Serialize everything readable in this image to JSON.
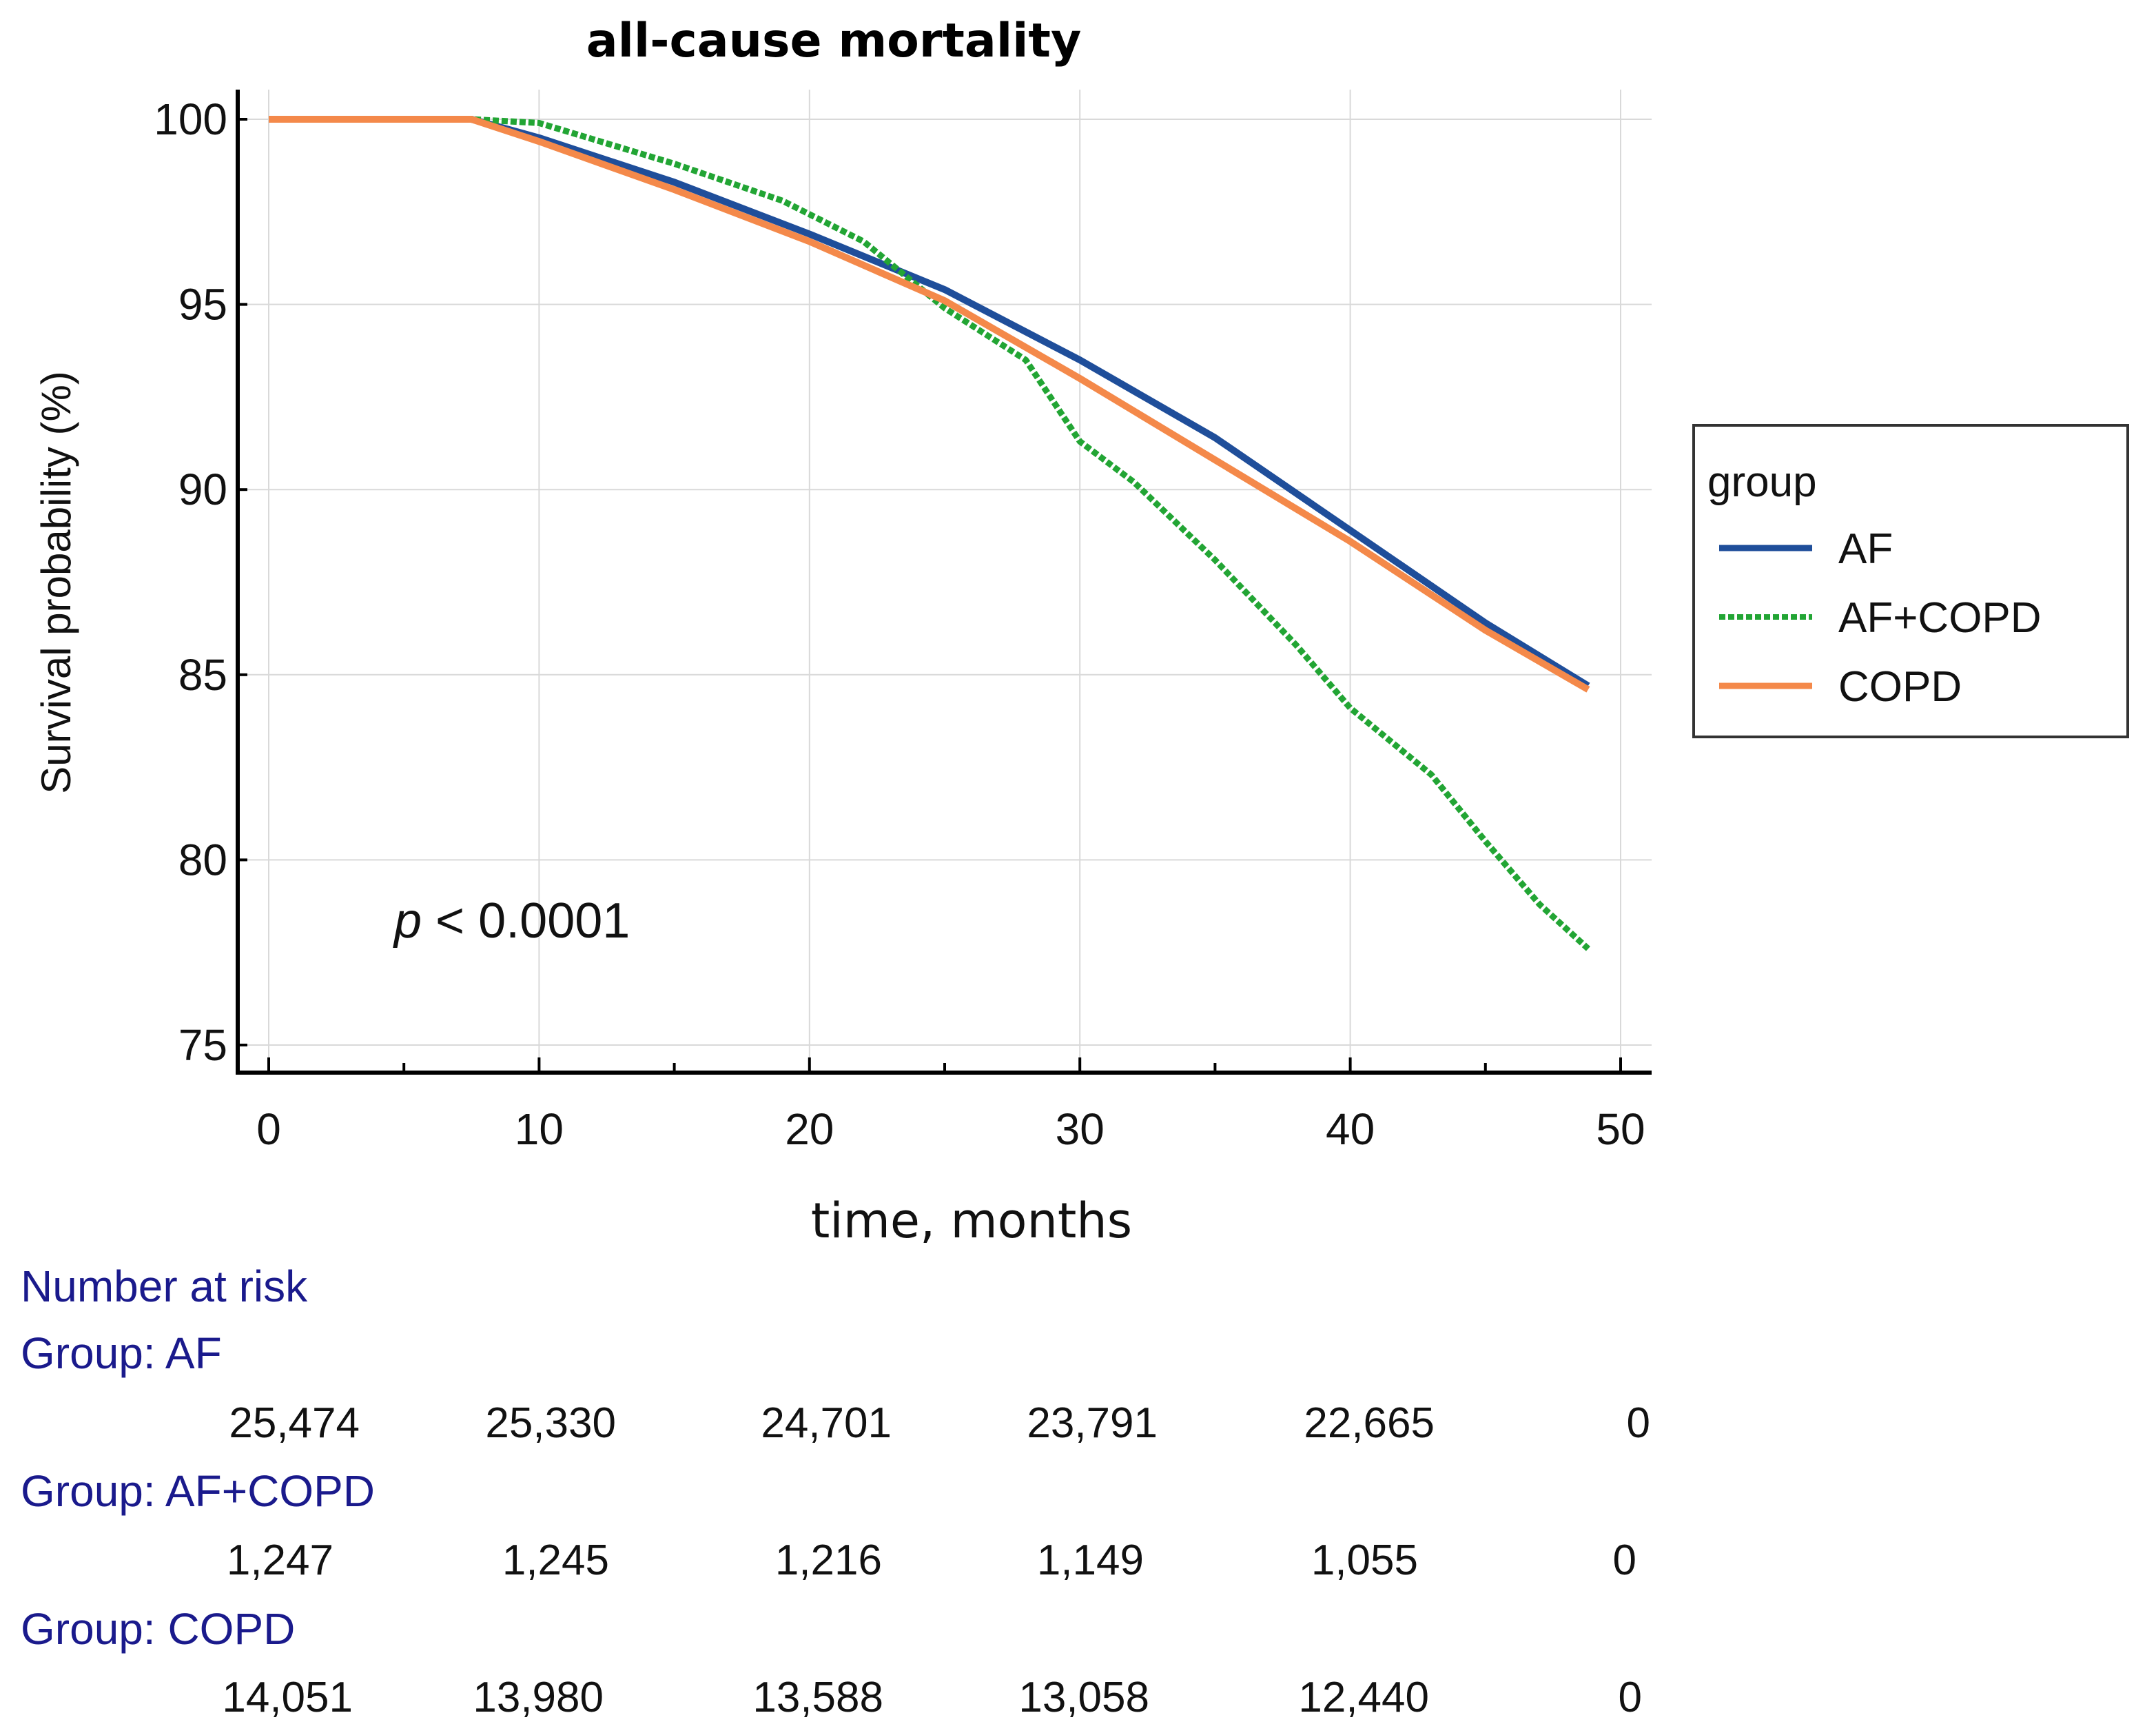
{
  "chart_data": {
    "type": "line",
    "title": "all-cause mortality",
    "xlabel": "time, months",
    "ylabel": "Survival probability (%)",
    "xlim": [
      0,
      50
    ],
    "ylim": [
      75,
      100
    ],
    "x_ticks": [
      "0",
      "10",
      "20",
      "30",
      "40",
      "50"
    ],
    "y_ticks": [
      "75",
      "80",
      "85",
      "90",
      "95",
      "100"
    ],
    "grid": true,
    "annotation": {
      "italic": "p",
      "rest": " < 0.0001"
    },
    "legend": {
      "title": "group",
      "position": "right",
      "entries": [
        "AF",
        "AF+COPD",
        "COPD"
      ]
    },
    "series": [
      {
        "name": "AF",
        "color": "#1f4e9a",
        "style": "solid",
        "x": [
          0,
          7.5,
          10,
          15,
          20,
          25,
          30,
          35,
          40,
          45,
          48.8
        ],
        "y": [
          100,
          100,
          99.5,
          98.3,
          96.9,
          95.4,
          93.5,
          91.4,
          88.9,
          86.4,
          84.7
        ]
      },
      {
        "name": "AF+COPD",
        "color": "#22a534",
        "style": "dotted",
        "x": [
          0,
          7.5,
          10,
          15,
          19,
          22,
          25,
          28,
          30,
          32,
          35,
          38,
          40,
          43,
          45,
          47,
          48.8
        ],
        "y": [
          100,
          100,
          99.9,
          98.8,
          97.8,
          96.7,
          94.9,
          93.5,
          91.3,
          90.2,
          88.1,
          85.8,
          84.1,
          82.3,
          80.5,
          78.8,
          77.6
        ]
      },
      {
        "name": "COPD",
        "color": "#f4894a",
        "style": "solid",
        "x": [
          0,
          7.5,
          10,
          15,
          20,
          25,
          30,
          35,
          40,
          45,
          48.8
        ],
        "y": [
          100,
          100,
          99.4,
          98.1,
          96.7,
          95.1,
          93.0,
          90.8,
          88.6,
          86.2,
          84.6
        ]
      }
    ]
  },
  "risk_table": {
    "title": "Number at risk",
    "groups": [
      {
        "label": "Group: AF",
        "values": [
          "25,474",
          "25,330",
          "24,701",
          "23,791",
          "22,665",
          "0"
        ]
      },
      {
        "label": "Group: AF+COPD",
        "values": [
          "1,247",
          "1,245",
          "1,216",
          "1,149",
          "1,055",
          "0"
        ]
      },
      {
        "label": "Group: COPD",
        "values": [
          "14,051",
          "13,980",
          "13,588",
          "13,058",
          "12,440",
          "0"
        ]
      }
    ]
  }
}
